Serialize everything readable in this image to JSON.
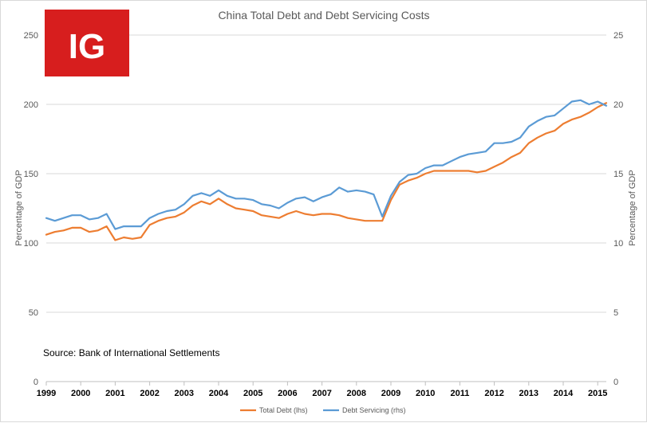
{
  "chart_data": {
    "type": "line",
    "title": "China Total Debt and Debt Servicing Costs",
    "logo": {
      "text": "IG",
      "color": "#d71e1e"
    },
    "source_note": "Source: Bank of International Settlements",
    "x_axis": {
      "range": [
        1999,
        2015.25
      ],
      "tick_values": [
        1999,
        2000,
        2001,
        2002,
        2003,
        2004,
        2005,
        2006,
        2007,
        2008,
        2009,
        2010,
        2011,
        2012,
        2013,
        2014,
        2015
      ],
      "tick_labels": [
        "1999",
        "2000",
        "2001",
        "2002",
        "2003",
        "2004",
        "2005",
        "2006",
        "2007",
        "2008",
        "2009",
        "2010",
        "2011",
        "2012",
        "2013",
        "2014",
        "2015"
      ]
    },
    "y_left": {
      "label": "Percentage of GDP",
      "range": [
        0,
        250
      ],
      "ticks": [
        0,
        50,
        100,
        150,
        200,
        250
      ]
    },
    "y_right": {
      "label": "Percentage of GDP",
      "range": [
        0,
        25
      ],
      "ticks": [
        0,
        5,
        10,
        15,
        20,
        25
      ]
    },
    "grid": "horizontal",
    "legend_position": "bottom",
    "series": [
      {
        "name": "Total Debt (lhs)",
        "axis": "left",
        "color": "#ed7d31",
        "x": [
          1999,
          1999.25,
          1999.5,
          1999.75,
          2000,
          2000.25,
          2000.5,
          2000.75,
          2001,
          2001.25,
          2001.5,
          2001.75,
          2002,
          2002.25,
          2002.5,
          2002.75,
          2003,
          2003.25,
          2003.5,
          2003.75,
          2004,
          2004.25,
          2004.5,
          2004.75,
          2005,
          2005.25,
          2005.5,
          2005.75,
          2006,
          2006.25,
          2006.5,
          2006.75,
          2007,
          2007.25,
          2007.5,
          2007.75,
          2008,
          2008.25,
          2008.5,
          2008.75,
          2009,
          2009.25,
          2009.5,
          2009.75,
          2010,
          2010.25,
          2010.5,
          2010.75,
          2011,
          2011.25,
          2011.5,
          2011.75,
          2012,
          2012.25,
          2012.5,
          2012.75,
          2013,
          2013.25,
          2013.5,
          2013.75,
          2014,
          2014.25,
          2014.5,
          2014.75,
          2015,
          2015.25
        ],
        "values": [
          106,
          108,
          109,
          111,
          111,
          108,
          109,
          112,
          102,
          104,
          103,
          104,
          113,
          116,
          118,
          119,
          122,
          127,
          130,
          128,
          132,
          128,
          125,
          124,
          123,
          120,
          119,
          118,
          121,
          123,
          121,
          120,
          121,
          121,
          120,
          118,
          117,
          116,
          116,
          116,
          131,
          142,
          145,
          147,
          150,
          152,
          152,
          152,
          152,
          152,
          151,
          152,
          155,
          158,
          162,
          165,
          172,
          176,
          179,
          181,
          186,
          189,
          191,
          194,
          198,
          201
        ]
      },
      {
        "name": "Debt Servicing (rhs)",
        "axis": "right",
        "color": "#5b9bd5",
        "x": [
          1999,
          1999.25,
          1999.5,
          1999.75,
          2000,
          2000.25,
          2000.5,
          2000.75,
          2001,
          2001.25,
          2001.5,
          2001.75,
          2002,
          2002.25,
          2002.5,
          2002.75,
          2003,
          2003.25,
          2003.5,
          2003.75,
          2004,
          2004.25,
          2004.5,
          2004.75,
          2005,
          2005.25,
          2005.5,
          2005.75,
          2006,
          2006.25,
          2006.5,
          2006.75,
          2007,
          2007.25,
          2007.5,
          2007.75,
          2008,
          2008.25,
          2008.5,
          2008.75,
          2009,
          2009.25,
          2009.5,
          2009.75,
          2010,
          2010.25,
          2010.5,
          2010.75,
          2011,
          2011.25,
          2011.5,
          2011.75,
          2012,
          2012.25,
          2012.5,
          2012.75,
          2013,
          2013.25,
          2013.5,
          2013.75,
          2014,
          2014.25,
          2014.5,
          2014.75,
          2015,
          2015.25
        ],
        "values": [
          11.8,
          11.6,
          11.8,
          12.0,
          12.0,
          11.7,
          11.8,
          12.1,
          11.0,
          11.2,
          11.2,
          11.2,
          11.8,
          12.1,
          12.3,
          12.4,
          12.8,
          13.4,
          13.6,
          13.4,
          13.8,
          13.4,
          13.2,
          13.2,
          13.1,
          12.8,
          12.7,
          12.5,
          12.9,
          13.2,
          13.3,
          13.0,
          13.3,
          13.5,
          14.0,
          13.7,
          13.8,
          13.7,
          13.5,
          11.9,
          13.4,
          14.4,
          14.9,
          15.0,
          15.4,
          15.6,
          15.6,
          15.9,
          16.2,
          16.4,
          16.5,
          16.6,
          17.2,
          17.2,
          17.3,
          17.6,
          18.4,
          18.8,
          19.1,
          19.2,
          19.7,
          20.2,
          20.3,
          20.0,
          20.2,
          19.9
        ]
      }
    ]
  }
}
